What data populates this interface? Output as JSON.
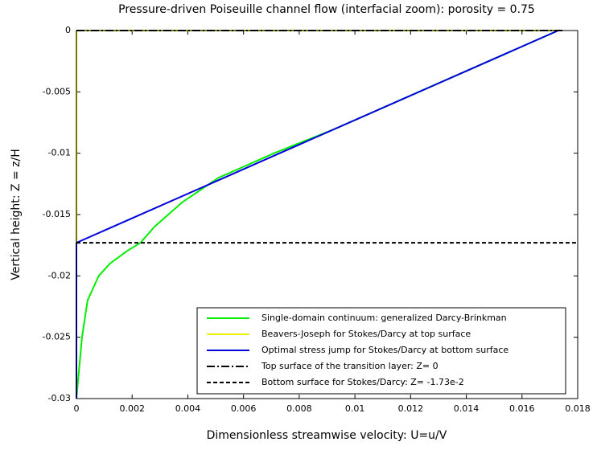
{
  "chart_data": {
    "type": "line",
    "title": "Pressure-driven Poiseuille channel flow (interfacial zoom): porosity = 0.75",
    "xlabel": "Dimensionless streamwise velocity: U=u/V",
    "ylabel": "Vertical height: Z = z/H",
    "xlim": [
      0,
      0.018
    ],
    "ylim": [
      -0.03,
      0
    ],
    "xticks": [
      0,
      0.002,
      0.004,
      0.006,
      0.008,
      0.01,
      0.012,
      0.014,
      0.016,
      0.018
    ],
    "yticks": [
      0,
      -0.005,
      -0.01,
      -0.015,
      -0.02,
      -0.025,
      -0.03
    ],
    "legend": "lower right",
    "series": [
      {
        "name": "Single-domain continuum: generalized Darcy-Brinkman",
        "color": "#00ee00",
        "dash": "solid",
        "x": [
          0.0173,
          0.0123,
          0.0093,
          0.0071,
          0.0051,
          0.0038,
          0.0028,
          0.0023,
          0.0018,
          0.0012,
          0.0008,
          0.0004,
          0.0002,
          0
        ],
        "y": [
          0,
          -0.005,
          -0.008,
          -0.01,
          -0.012,
          -0.014,
          -0.016,
          -0.0173,
          -0.018,
          -0.019,
          -0.02,
          -0.022,
          -0.025,
          -0.03
        ]
      },
      {
        "name": "Beavers-Joseph for Stokes/Darcy at top surface",
        "color": "#eeee00",
        "dash": "solid",
        "x": [
          0,
          0,
          0.0173
        ],
        "y": [
          -0.0173,
          0,
          0
        ]
      },
      {
        "name": "Optimal stress jump for Stokes/Darcy at bottom surface",
        "color": "#0000dd",
        "dash": "solid",
        "x": [
          0.0173,
          0,
          0
        ],
        "y": [
          0,
          -0.0173,
          -0.03
        ]
      },
      {
        "name": "Top surface of the transition layer: Z= 0",
        "color": "#000000",
        "dash": "dashdot",
        "x": [
          0,
          0.0175
        ],
        "y": [
          0,
          0
        ]
      },
      {
        "name": "Bottom surface for Stokes/Darcy: Z= -1.73e-2",
        "color": "#000000",
        "dash": "dashed",
        "x": [
          0,
          0.018
        ],
        "y": [
          -0.0173,
          -0.0173
        ]
      }
    ]
  }
}
